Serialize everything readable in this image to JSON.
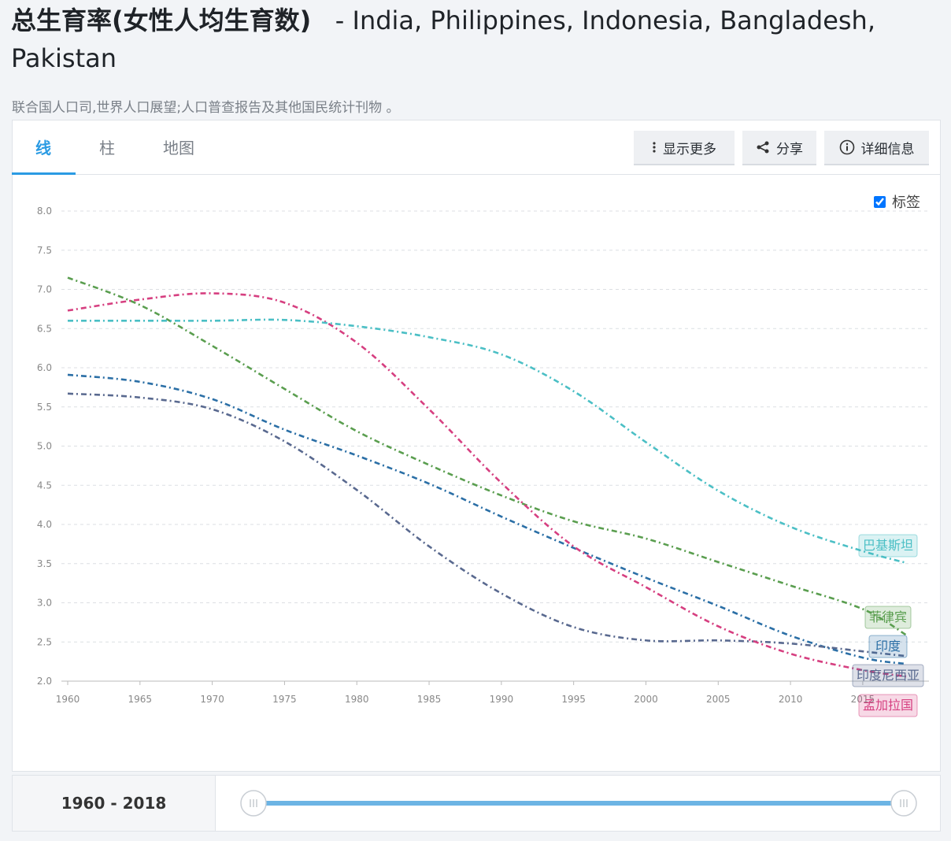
{
  "header": {
    "title_main": "总生育率(女性人均生育数)",
    "title_countries": "- India, Philippines, Indonesia, Bangladesh, Pakistan",
    "source": "联合国人口司,世界人口展望;人口普查报告及其他国民统计刊物 。"
  },
  "tabs": [
    "线",
    "柱",
    "地图"
  ],
  "buttons": [
    "显示更多",
    "分享",
    "详细信息"
  ],
  "labels_checkbox": "标签",
  "range_label": "1960 - 2018",
  "chart_data": {
    "type": "line",
    "x": [
      1960,
      1965,
      1970,
      1975,
      1980,
      1985,
      1990,
      1995,
      2000,
      2005,
      2010,
      2015,
      2018
    ],
    "xlim": [
      1960,
      2018
    ],
    "xticks": [
      1960,
      1965,
      1970,
      1975,
      1980,
      1985,
      1990,
      1995,
      2000,
      2005,
      2010,
      2015
    ],
    "ylim": [
      2,
      8
    ],
    "yticks": [
      {
        "value": 2,
        "label": "2.0"
      },
      {
        "value": 2.5,
        "label": "2.5"
      },
      {
        "value": 3,
        "label": "3.0"
      },
      {
        "value": 3.5,
        "label": "3.5"
      },
      {
        "value": 4,
        "label": "4.0"
      },
      {
        "value": 4.5,
        "label": "4.5"
      },
      {
        "value": 5,
        "label": "5.0"
      },
      {
        "value": 5.5,
        "label": "5.5"
      },
      {
        "value": 6,
        "label": "6.0"
      },
      {
        "value": 6.5,
        "label": "6.5"
      },
      {
        "value": 7,
        "label": "7.0"
      },
      {
        "value": 7.5,
        "label": "7.5"
      },
      {
        "value": 8,
        "label": "8.0"
      }
    ],
    "grid": true,
    "series": [
      {
        "name": "印度",
        "color": "#2b6fa6",
        "values": [
          5.91,
          5.82,
          5.6,
          5.21,
          4.88,
          4.52,
          4.1,
          3.7,
          3.32,
          2.96,
          2.58,
          2.3,
          2.22
        ]
      },
      {
        "name": "菲律宾",
        "color": "#5a9e4f",
        "values": [
          7.15,
          6.8,
          6.28,
          5.73,
          5.19,
          4.76,
          4.37,
          4.04,
          3.82,
          3.52,
          3.22,
          2.92,
          2.59
        ]
      },
      {
        "name": "印度尼西亚",
        "color": "#59698f",
        "values": [
          5.67,
          5.62,
          5.47,
          5.06,
          4.44,
          3.72,
          3.12,
          2.69,
          2.52,
          2.52,
          2.48,
          2.38,
          2.32
        ]
      },
      {
        "name": "孟加拉国",
        "color": "#d63f80",
        "values": [
          6.73,
          6.87,
          6.95,
          6.83,
          6.32,
          5.47,
          4.53,
          3.72,
          3.2,
          2.7,
          2.35,
          2.14,
          2.06
        ]
      },
      {
        "name": "巴基斯坦",
        "color": "#4bbfc5",
        "values": [
          6.6,
          6.6,
          6.6,
          6.61,
          6.53,
          6.39,
          6.17,
          5.7,
          5.05,
          4.43,
          3.97,
          3.66,
          3.51
        ]
      }
    ]
  }
}
